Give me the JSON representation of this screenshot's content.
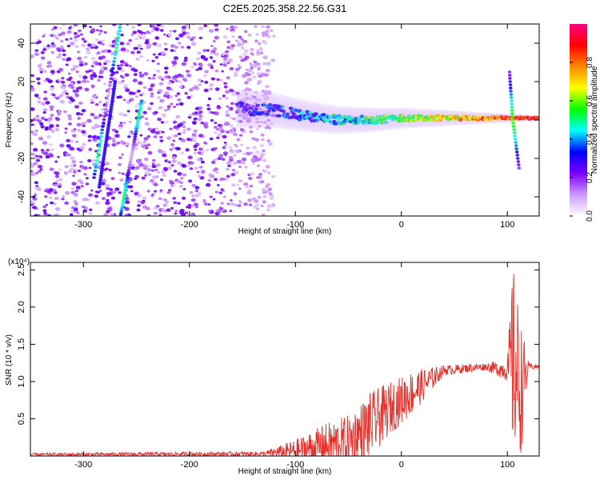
{
  "title": "C2E5.2025.358.22.56.G31",
  "chart_data": [
    {
      "type": "heatmap",
      "xlabel": "Height of straight line (km)",
      "ylabel": "Frequency (Hz)",
      "xlim": [
        -350,
        130
      ],
      "ylim": [
        -50,
        50
      ],
      "x_ticks": [
        -300,
        -200,
        -100,
        0,
        100
      ],
      "y_ticks": [
        -40,
        -20,
        0,
        20,
        40
      ],
      "colorbar": {
        "label": "Normalized spectral amplitude",
        "range": [
          0,
          1
        ],
        "ticks": [
          "0.0",
          "0.2",
          "0.4",
          "0.6",
          "0.8"
        ],
        "colormap": "rainbow",
        "stops": [
          "#ffffff",
          "#cc99ff",
          "#7b00ff",
          "#0000ff",
          "#00ffff",
          "#00ff00",
          "#ffff00",
          "#ff8800",
          "#ff0000",
          "#ff0080"
        ]
      },
      "features": [
        {
          "name": "noise field",
          "x_range": [
            -350,
            -120
          ],
          "y_range": [
            -50,
            50
          ],
          "amplitude": 0.15
        },
        {
          "name": "streak",
          "x_start": -290,
          "y_start": -30,
          "x_end": -265,
          "y_end": 50
        },
        {
          "name": "streak",
          "x_start": -285,
          "y_start": -35,
          "x_end": -270,
          "y_end": 20,
          "amplitude": 0.3
        },
        {
          "name": "streak",
          "x_start": -265,
          "y_start": -50,
          "x_end": -245,
          "y_end": 10
        },
        {
          "name": "carrier trace",
          "points": [
            [
              -155,
              6
            ],
            [
              -120,
              5
            ],
            [
              -90,
              2
            ],
            [
              -60,
              0
            ],
            [
              -30,
              0
            ],
            [
              0,
              1
            ],
            [
              50,
              1
            ],
            [
              100,
              1
            ],
            [
              130,
              1
            ]
          ]
        },
        {
          "name": "spike",
          "x": 105,
          "y_from": -25,
          "y_to": 25
        }
      ]
    },
    {
      "type": "line",
      "xlabel": "Height of straight line (km)",
      "ylabel": "SNR (10 * v/v)",
      "y_multiplier": "(x10⁴)",
      "xlim": [
        -350,
        130
      ],
      "ylim": [
        0,
        2.6
      ],
      "x_ticks": [
        -300,
        -200,
        -100,
        0,
        100
      ],
      "y_ticks": [
        "0.5",
        "1.0",
        "1.5",
        "2.0",
        "2.5"
      ],
      "color": "#e8302a",
      "envelope": [
        {
          "x": -350,
          "base": 0.02,
          "amp": 0.02
        },
        {
          "x": -130,
          "base": 0.03,
          "amp": 0.03
        },
        {
          "x": -100,
          "base": 0.07,
          "amp": 0.15
        },
        {
          "x": -70,
          "base": 0.15,
          "amp": 0.3
        },
        {
          "x": -50,
          "base": 0.2,
          "amp": 0.35
        },
        {
          "x": -30,
          "base": 0.4,
          "amp": 0.45
        },
        {
          "x": -10,
          "base": 0.65,
          "amp": 0.35
        },
        {
          "x": 10,
          "base": 0.85,
          "amp": 0.3
        },
        {
          "x": 40,
          "base": 1.15,
          "amp": 0.07
        },
        {
          "x": 80,
          "base": 1.2,
          "amp": 0.05
        },
        {
          "x": 100,
          "base": 1.15,
          "amp": 0.15
        },
        {
          "x": 105,
          "base": 1.3,
          "amp": 1.3
        },
        {
          "x": 113,
          "base": 0.9,
          "amp": 0.9
        },
        {
          "x": 120,
          "base": 1.2,
          "amp": 0.05
        },
        {
          "x": 130,
          "base": 1.2,
          "amp": 0.03
        }
      ]
    }
  ]
}
